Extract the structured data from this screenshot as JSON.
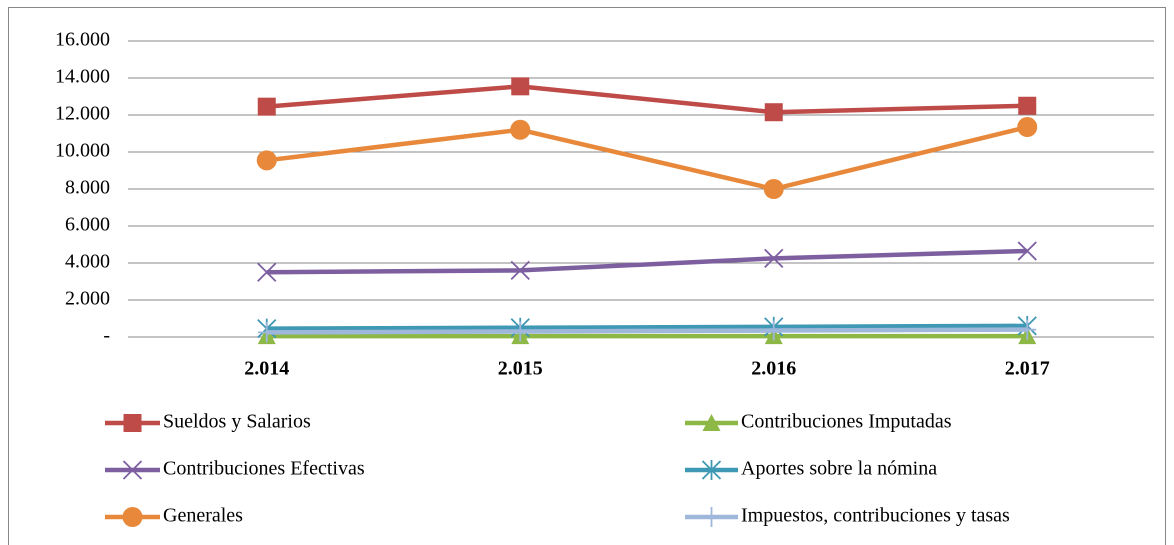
{
  "chart_data": {
    "type": "line",
    "categories": [
      "2.014",
      "2.015",
      "2.016",
      "2.017"
    ],
    "ylim": [
      0,
      16000
    ],
    "yticks": [
      {
        "value": 0,
        "label": "-"
      },
      {
        "value": 2000,
        "label": "2.000"
      },
      {
        "value": 4000,
        "label": "4.000"
      },
      {
        "value": 6000,
        "label": "6.000"
      },
      {
        "value": 8000,
        "label": "8.000"
      },
      {
        "value": 10000,
        "label": "10.000"
      },
      {
        "value": 12000,
        "label": "12.000"
      },
      {
        "value": 14000,
        "label": "14.000"
      },
      {
        "value": 16000,
        "label": "16.000"
      }
    ],
    "grid": true,
    "series": [
      {
        "name": "Sueldos y Salarios",
        "color": "#be4b48",
        "marker": "square",
        "values": [
          12450,
          13550,
          12150,
          12500
        ]
      },
      {
        "name": "Contribuciones Imputadas",
        "color": "#8db845",
        "marker": "triangle",
        "values": [
          50,
          50,
          50,
          50
        ]
      },
      {
        "name": "Contribuciones Efectivas",
        "color": "#7d5fa0",
        "marker": "x",
        "values": [
          3500,
          3600,
          4250,
          4650
        ]
      },
      {
        "name": "Aportes sobre la nómina",
        "color": "#3f98b4",
        "marker": "asterisk",
        "values": [
          450,
          500,
          550,
          600
        ]
      },
      {
        "name": "Generales",
        "color": "#e8883a",
        "marker": "circle",
        "values": [
          9550,
          11200,
          8000,
          11350
        ]
      },
      {
        "name": "Impuestos, contribuciones y tasas",
        "color": "#9fb7db",
        "marker": "plus",
        "values": [
          250,
          300,
          350,
          400
        ]
      }
    ]
  }
}
